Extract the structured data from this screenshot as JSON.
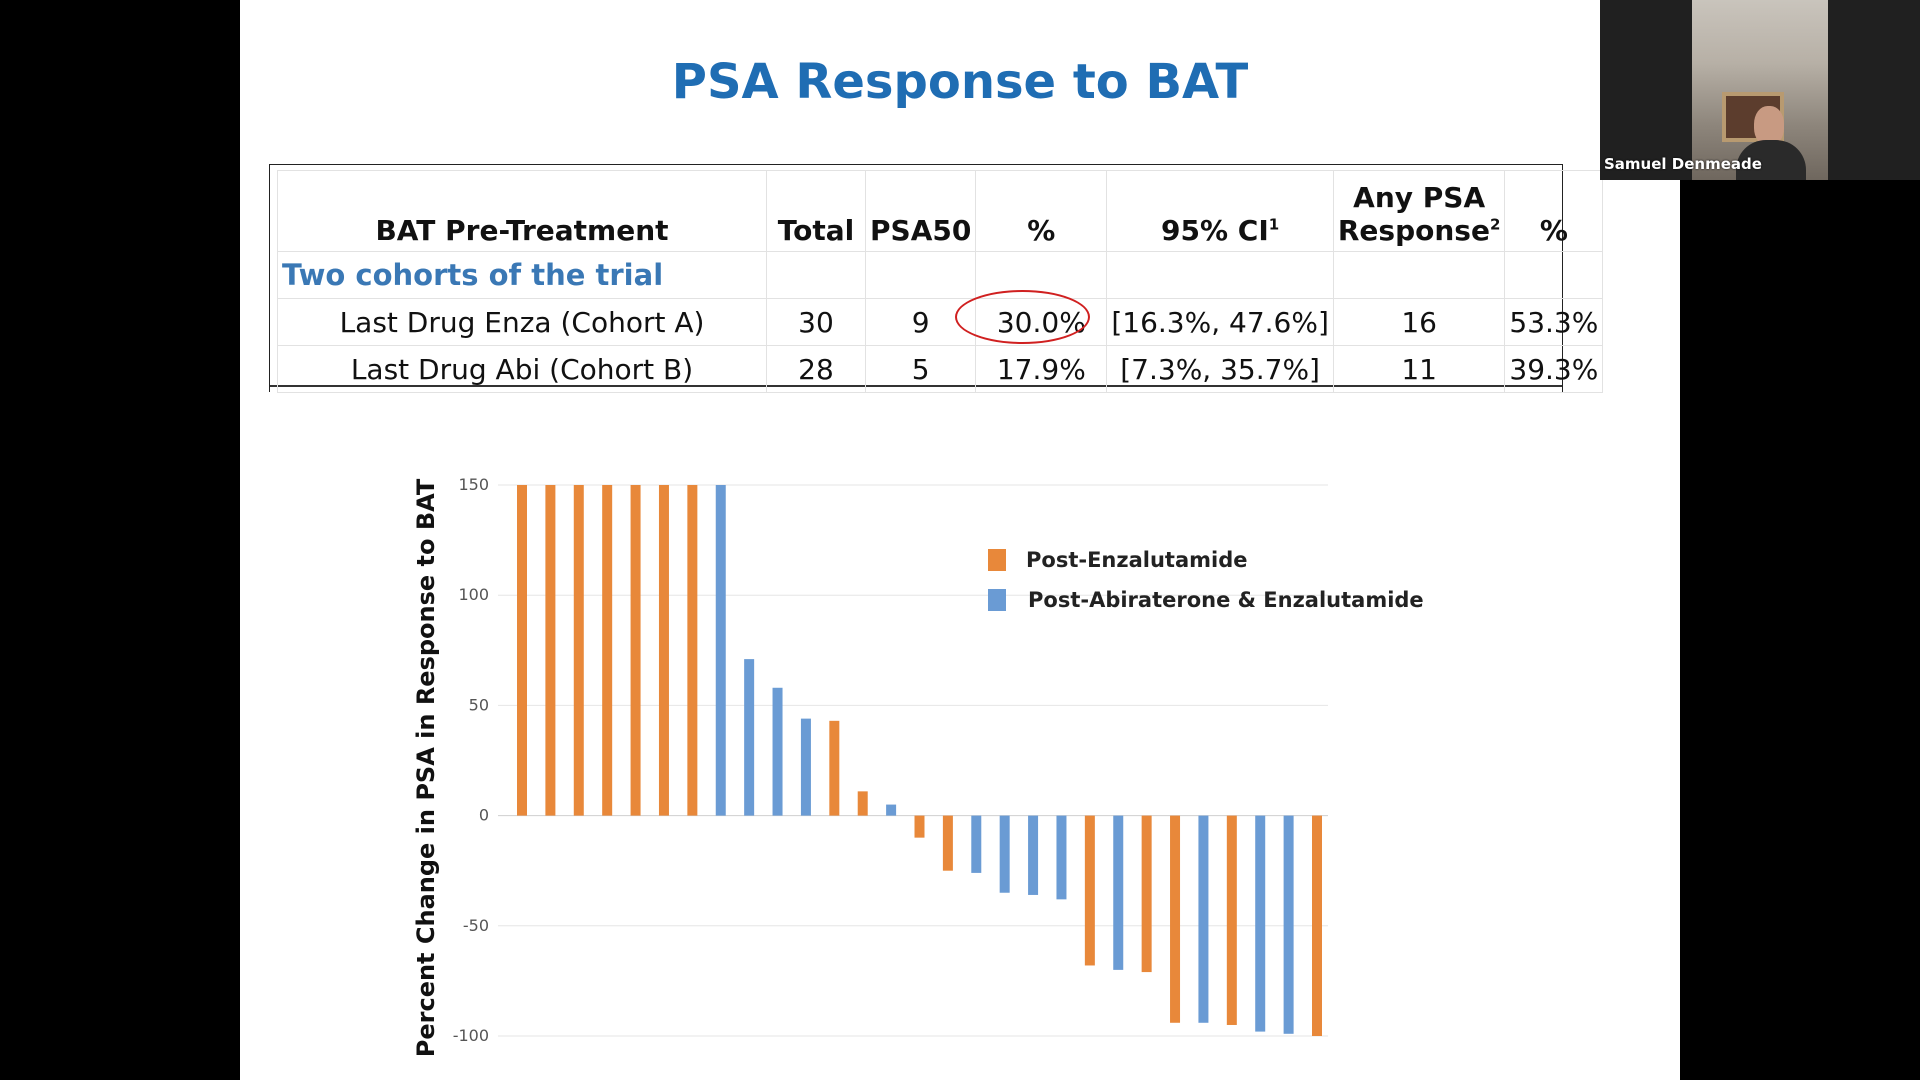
{
  "slide": {
    "title": "PSA Response to BAT"
  },
  "table": {
    "headers": {
      "label": "BAT Pre-Treatment",
      "total": "Total",
      "psa50": "PSA50",
      "pct": "%",
      "ci": "95% CI",
      "ci_sup": "1",
      "any_line1": "Any PSA",
      "any_line2": "Response",
      "any_sup": "2",
      "pct2": "%"
    },
    "group_label": "Two cohorts of the trial",
    "rows": [
      {
        "label": "Last Drug Enza (Cohort A)",
        "total": "30",
        "psa50": "9",
        "pct": "30.0%",
        "ci": "[16.3%, 47.6%]",
        "any": "16",
        "pct2": "53.3%"
      },
      {
        "label": "Last Drug Abi (Cohort B)",
        "total": "28",
        "psa50": "5",
        "pct": "17.9%",
        "ci": "[7.3%, 35.7%]",
        "any": "11",
        "pct2": "39.3%"
      }
    ]
  },
  "chart_data": {
    "type": "bar",
    "title": "",
    "xlabel": "",
    "ylabel": "Percent Change in PSA in Response to BAT",
    "ylim": [
      -100,
      150
    ],
    "yticks": [
      "150",
      "100",
      "50",
      "0",
      "-50",
      "-100"
    ],
    "grid": true,
    "legend_position": "top-right",
    "series": [
      {
        "name": "Post-Enzalutamide",
        "color": "#e8883a"
      },
      {
        "name": "Post-Abiraterone & Enzalutamide",
        "color": "#6a9bd4"
      }
    ],
    "values": [
      150,
      150,
      150,
      150,
      150,
      150,
      150,
      150,
      71,
      58,
      44,
      43,
      11,
      5,
      -10,
      -25,
      -26,
      -35,
      -36,
      -38,
      -68,
      -70,
      -71,
      -94,
      -94,
      -95,
      -98,
      -99,
      -100
    ],
    "series_index": [
      0,
      0,
      0,
      0,
      0,
      0,
      0,
      1,
      1,
      1,
      1,
      0,
      0,
      1,
      0,
      0,
      1,
      1,
      1,
      1,
      0,
      1,
      0,
      0,
      1,
      0,
      1,
      1,
      0
    ]
  },
  "webcam": {
    "name": "Samuel Denmeade"
  }
}
